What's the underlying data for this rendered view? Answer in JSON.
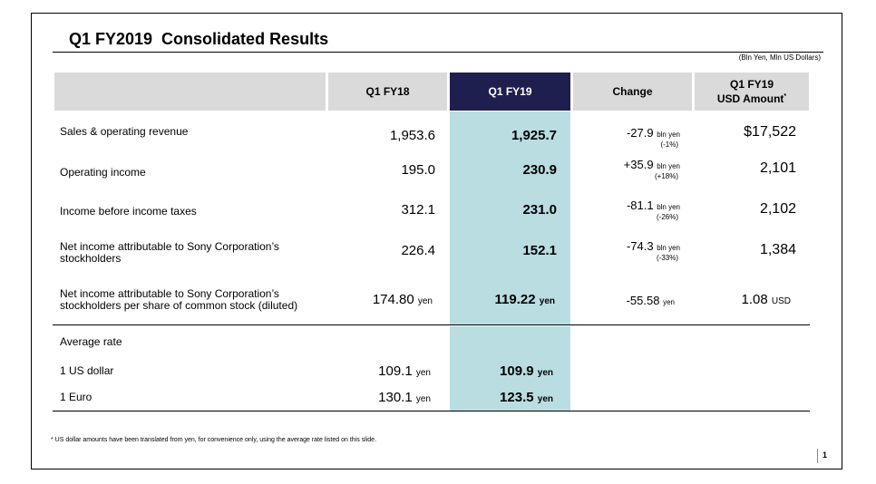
{
  "title": "Q1 FY2019  Consolidated Results",
  "units_note": "(Bln Yen, Mln US Dollars)",
  "headers": {
    "q1fy18": "Q1 FY18",
    "q1fy19": "Q1 FY19",
    "change": "Change",
    "usd_line1": "Q1 FY19",
    "usd_line2": "USD Amount",
    "usd_mark": "*"
  },
  "rows": [
    {
      "label": "Sales & operating revenue",
      "fy18": "1,953.6",
      "fy19": "1,925.7",
      "change": "-27.9",
      "change_unit": "bln yen",
      "pct": "(-1%)",
      "usd": "$17,522"
    },
    {
      "label": "Operating income",
      "fy18": "195.0",
      "fy19": "230.9",
      "change": "+35.9",
      "change_unit": "bln yen",
      "pct": "(+18%)",
      "usd": "2,101"
    },
    {
      "label": "Income before income taxes",
      "fy18": "312.1",
      "fy19": "231.0",
      "change": "-81.1",
      "change_unit": "bln yen",
      "pct": "(-26%)",
      "usd": "2,102"
    },
    {
      "label_line1": "Net income attributable to Sony Corporation’s",
      "label_line2": "stockholders",
      "fy18": "226.4",
      "fy19": "152.1",
      "change": "-74.3",
      "change_unit": "bln yen",
      "pct": "(-33%)",
      "usd": "1,384"
    },
    {
      "label_line1": "Net income attributable to Sony Corporation’s",
      "label_line2": "stockholders per share of common stock (diluted)",
      "fy18": "174.80",
      "fy18_unit": "yen",
      "fy19": "119.22",
      "fy19_unit": "yen",
      "change": "-55.58",
      "change_unit": "yen",
      "usd": "1.08",
      "usd_unit": "USD"
    }
  ],
  "average_rate": {
    "label": "Average rate",
    "rows": [
      {
        "label": "1 US dollar",
        "fy18": "109.1",
        "fy18_unit": "yen",
        "fy19": "109.9",
        "fy19_unit": "yen"
      },
      {
        "label": "1 Euro",
        "fy18": "130.1",
        "fy18_unit": "yen",
        "fy19": "123.5",
        "fy19_unit": "yen"
      }
    ]
  },
  "footnote": "* US dollar amounts have been translated from yen, for convenience only, using the average rate listed on this slide.",
  "page_number": "1"
}
